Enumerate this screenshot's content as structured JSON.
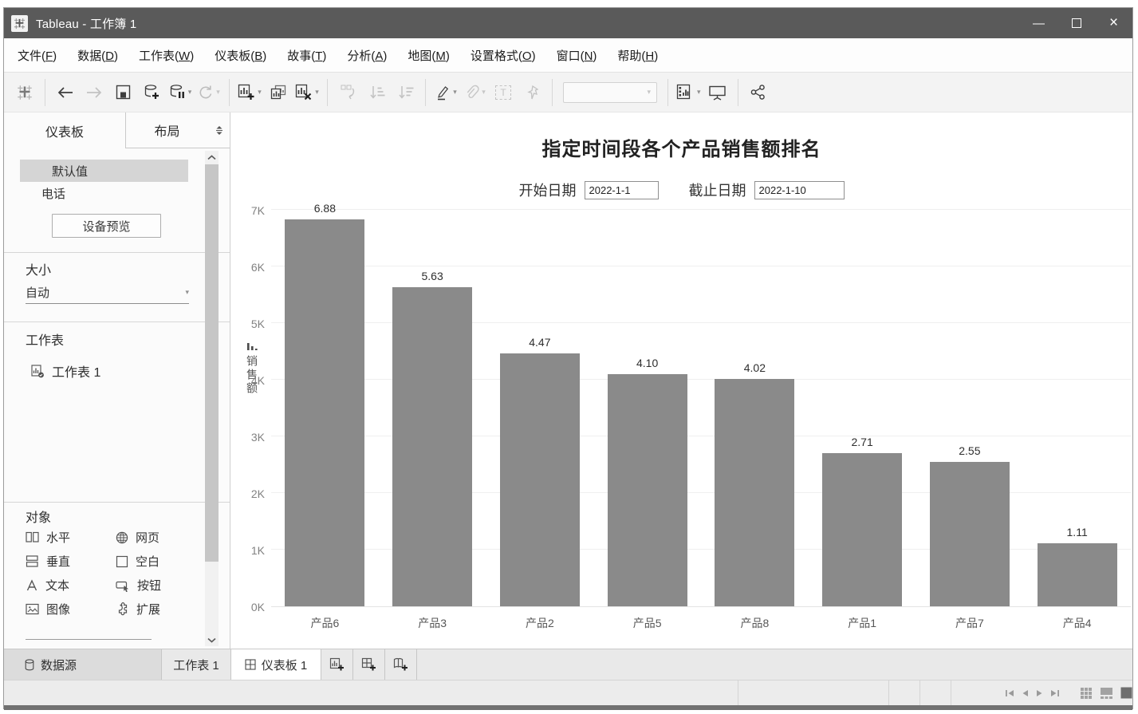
{
  "window": {
    "title": "Tableau - 工作簿 1",
    "minimize_glyph": "—",
    "close_glyph": "×"
  },
  "menu": {
    "items": [
      {
        "label": "文件",
        "key": "F"
      },
      {
        "label": "数据",
        "key": "D"
      },
      {
        "label": "工作表",
        "key": "W"
      },
      {
        "label": "仪表板",
        "key": "B"
      },
      {
        "label": "故事",
        "key": "T"
      },
      {
        "label": "分析",
        "key": "A"
      },
      {
        "label": "地图",
        "key": "M"
      },
      {
        "label": "设置格式",
        "key": "O"
      },
      {
        "label": "窗口",
        "key": "N"
      },
      {
        "label": "帮助",
        "key": "H"
      }
    ]
  },
  "toolbar": {
    "icons": [
      "tableau-logo",
      "undo",
      "redo",
      "save",
      "new-data-source",
      "pause-auto-updates",
      "refresh-data-source",
      "new-worksheet",
      "duplicate-sheet",
      "clear-sheet",
      "swap-rows-columns",
      "sort-ascending",
      "sort-descending",
      "highlight",
      "group-members",
      "show-mark-labels",
      "fix-axes",
      "fit-selector",
      "show-me",
      "presentation-mode",
      "share"
    ]
  },
  "sidebar": {
    "tabs": [
      {
        "label": "仪表板",
        "active": true
      },
      {
        "label": "布局",
        "active": false
      }
    ],
    "device_list": [
      {
        "label": "默认值",
        "selected": true
      },
      {
        "label": "电话",
        "selected": false
      }
    ],
    "device_preview_button": "设备预览",
    "size_section": {
      "header": "大小",
      "value": "自动"
    },
    "worksheets_section": {
      "header": "工作表",
      "items": [
        "工作表 1"
      ]
    },
    "objects_section": {
      "header": "对象",
      "items": [
        {
          "icon": "horizontal-container-icon",
          "label": "水平"
        },
        {
          "icon": "web-page-icon",
          "label": "网页"
        },
        {
          "icon": "vertical-container-icon",
          "label": "垂直"
        },
        {
          "icon": "blank-icon",
          "label": "空白"
        },
        {
          "icon": "text-icon",
          "label": "文本"
        },
        {
          "icon": "button-icon",
          "label": "按钮"
        },
        {
          "icon": "image-icon",
          "label": "图像"
        },
        {
          "icon": "extension-icon",
          "label": "扩展"
        }
      ]
    }
  },
  "chart_data": {
    "type": "bar",
    "title": "指定时间段各个产品销售额排名",
    "categories": [
      "产品6",
      "产品3",
      "产品2",
      "产品5",
      "产品8",
      "产品1",
      "产品7",
      "产品4"
    ],
    "values": [
      6880,
      5630,
      4470,
      4100,
      4020,
      2710,
      2550,
      1110
    ],
    "bar_labels": [
      "6.88",
      "5.63",
      "4.47",
      "4.10",
      "4.02",
      "2.71",
      "2.55",
      "1.11"
    ],
    "xlabel": "",
    "ylabel": "销售额",
    "ytick_labels": [
      "0K",
      "1K",
      "2K",
      "3K",
      "4K",
      "5K",
      "6K",
      "7K"
    ],
    "ylim": [
      0,
      7200
    ],
    "grid": true,
    "legend": "none",
    "bar_color": "#8a8a8a",
    "params": {
      "start_label": "开始日期",
      "start_value": "2022-1-1",
      "end_label": "截止日期",
      "end_value": "2022-1-10"
    }
  },
  "sheet_tabs": {
    "data_source": "数据源",
    "tabs": [
      {
        "label": "工作表 1",
        "active": false
      },
      {
        "label": "仪表板 1",
        "active": true
      }
    ],
    "new_buttons": [
      "new-worksheet",
      "new-dashboard",
      "new-story"
    ]
  },
  "statusbar": {
    "nav_icons": [
      "first-record",
      "previous-record",
      "next-record",
      "last-record"
    ],
    "view_icons": [
      "grid-view",
      "thumbnail-view",
      "filmstrip-view"
    ]
  }
}
